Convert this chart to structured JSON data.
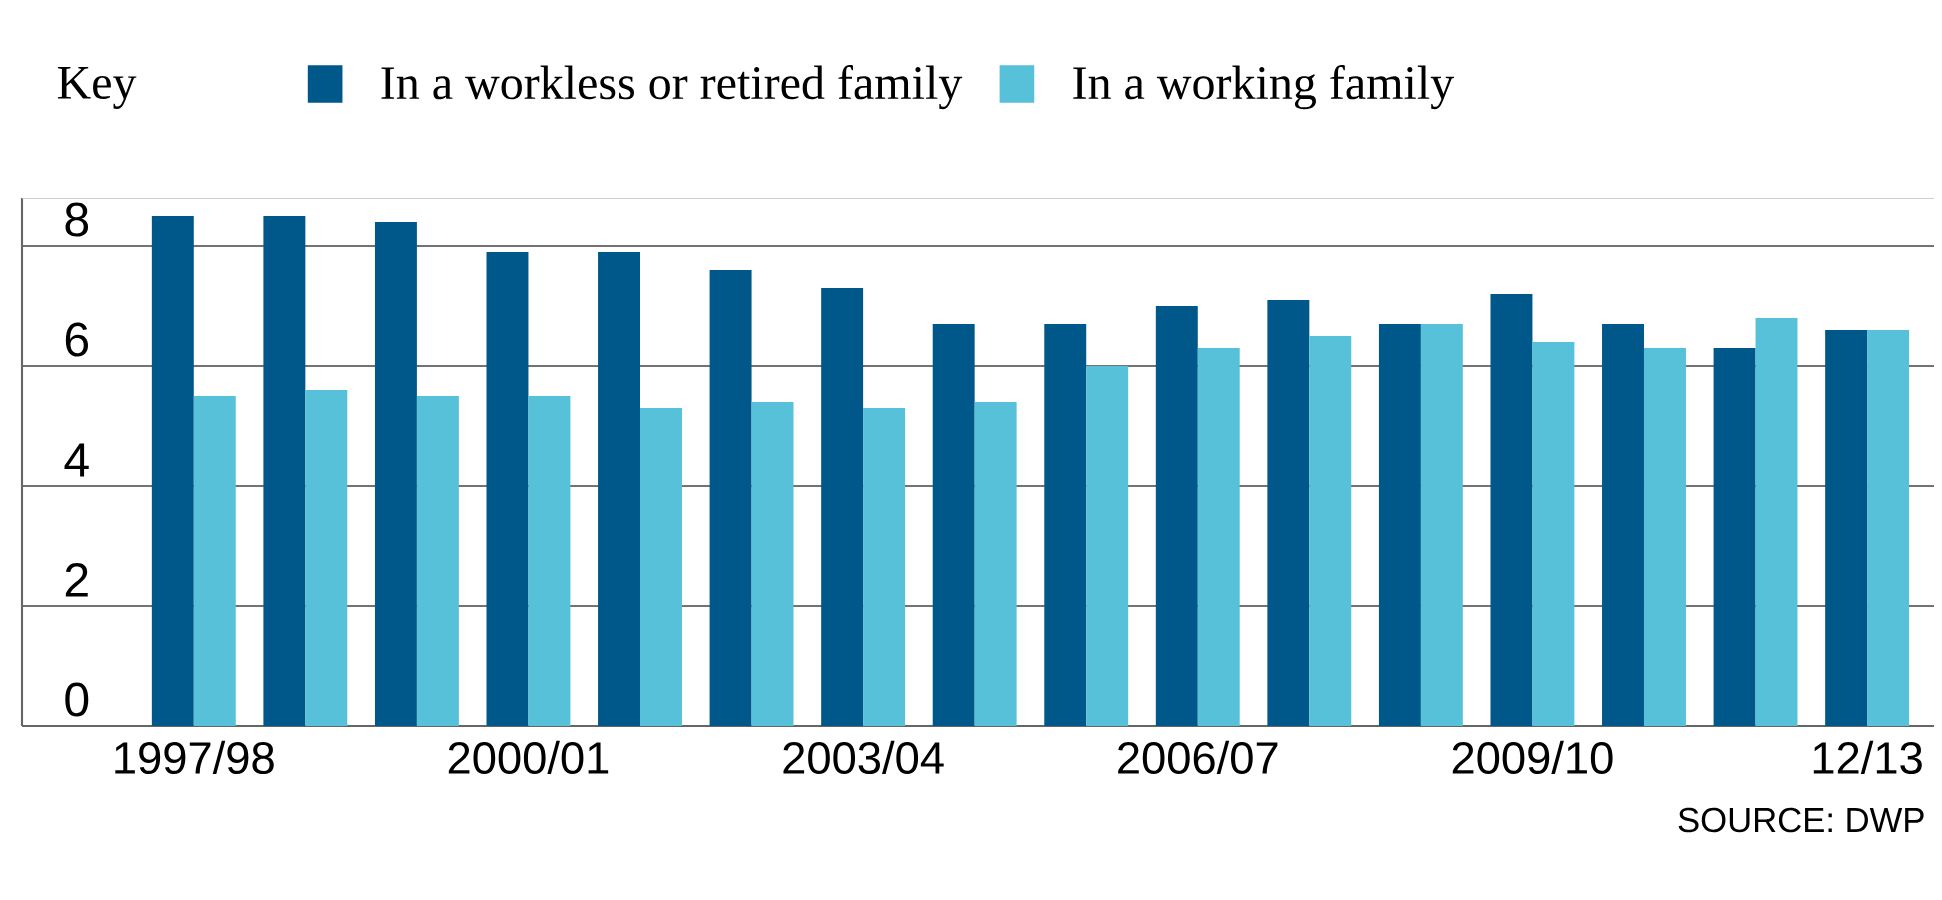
{
  "chart_data": {
    "type": "bar",
    "legend_title": "Key",
    "categories": [
      "1997/98",
      null,
      null,
      "2000/01",
      null,
      null,
      "2003/04",
      null,
      null,
      "2006/07",
      null,
      null,
      "2009/10",
      null,
      null,
      "12/13"
    ],
    "series": [
      {
        "name": "In a workless or retired family",
        "color": "#005789",
        "values": [
          8.5,
          8.5,
          8.4,
          7.9,
          7.9,
          7.6,
          7.3,
          6.7,
          6.7,
          7.0,
          7.1,
          6.7,
          7.2,
          6.7,
          6.3,
          6.6
        ]
      },
      {
        "name": "In a working family",
        "color": "#56c1d8",
        "values": [
          5.5,
          5.6,
          5.5,
          5.5,
          5.3,
          5.4,
          5.3,
          5.4,
          6.0,
          6.3,
          6.5,
          6.7,
          6.4,
          6.3,
          6.8,
          6.6
        ]
      }
    ],
    "ylim": [
      0,
      8.8
    ],
    "yticks": [
      0,
      2,
      4,
      6,
      8
    ],
    "grid": "y",
    "legend": "top",
    "annotations": [
      "SOURCE: DWP"
    ]
  }
}
